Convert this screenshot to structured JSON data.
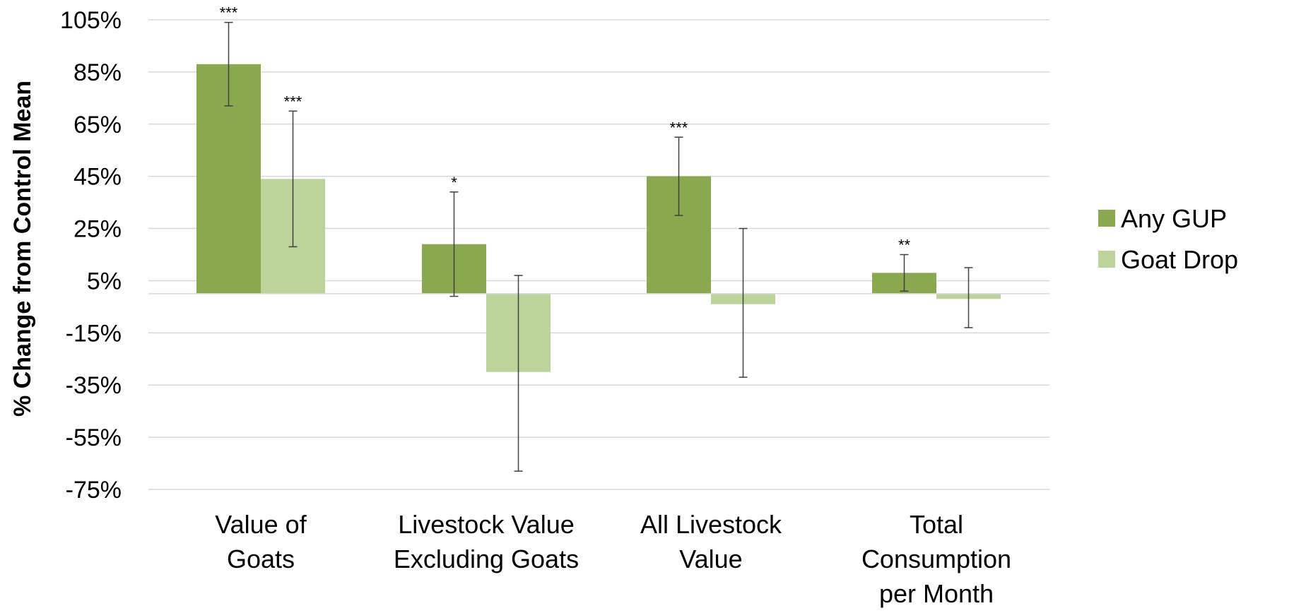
{
  "chart_data": {
    "type": "bar",
    "title": "",
    "xlabel": "",
    "ylabel": "% Change from Control Mean",
    "ylim": [
      -75,
      105
    ],
    "ytick_values": [
      105,
      85,
      65,
      45,
      25,
      5,
      -15,
      -35,
      -55,
      -75
    ],
    "ytick_labels": [
      "105%",
      "85%",
      "65%",
      "45%",
      "25%",
      "5%",
      "-15%",
      "-35%",
      "-55%",
      "-75%"
    ],
    "grid": true,
    "legend_position": "right",
    "categories": [
      [
        "Value of",
        "Goats"
      ],
      [
        "Livestock Value",
        "Excluding Goats"
      ],
      [
        "All Livestock",
        "Value"
      ],
      [
        "Total",
        "Consumption",
        "per Month"
      ]
    ],
    "series": [
      {
        "name": "Any GUP",
        "color": "#8aa84e",
        "values": [
          88,
          19,
          45,
          8
        ],
        "error_low": [
          72,
          -1,
          30,
          1
        ],
        "error_high": [
          104,
          39,
          60,
          15
        ],
        "significance": [
          "***",
          "*",
          "***",
          "**"
        ]
      },
      {
        "name": "Goat Drop",
        "color": "#bcd39a",
        "values": [
          44,
          -30,
          -4,
          -2
        ],
        "error_low": [
          18,
          -68,
          -32,
          -13
        ],
        "error_high": [
          70,
          7,
          25,
          10
        ],
        "significance": [
          "***",
          "",
          "",
          ""
        ]
      }
    ]
  }
}
